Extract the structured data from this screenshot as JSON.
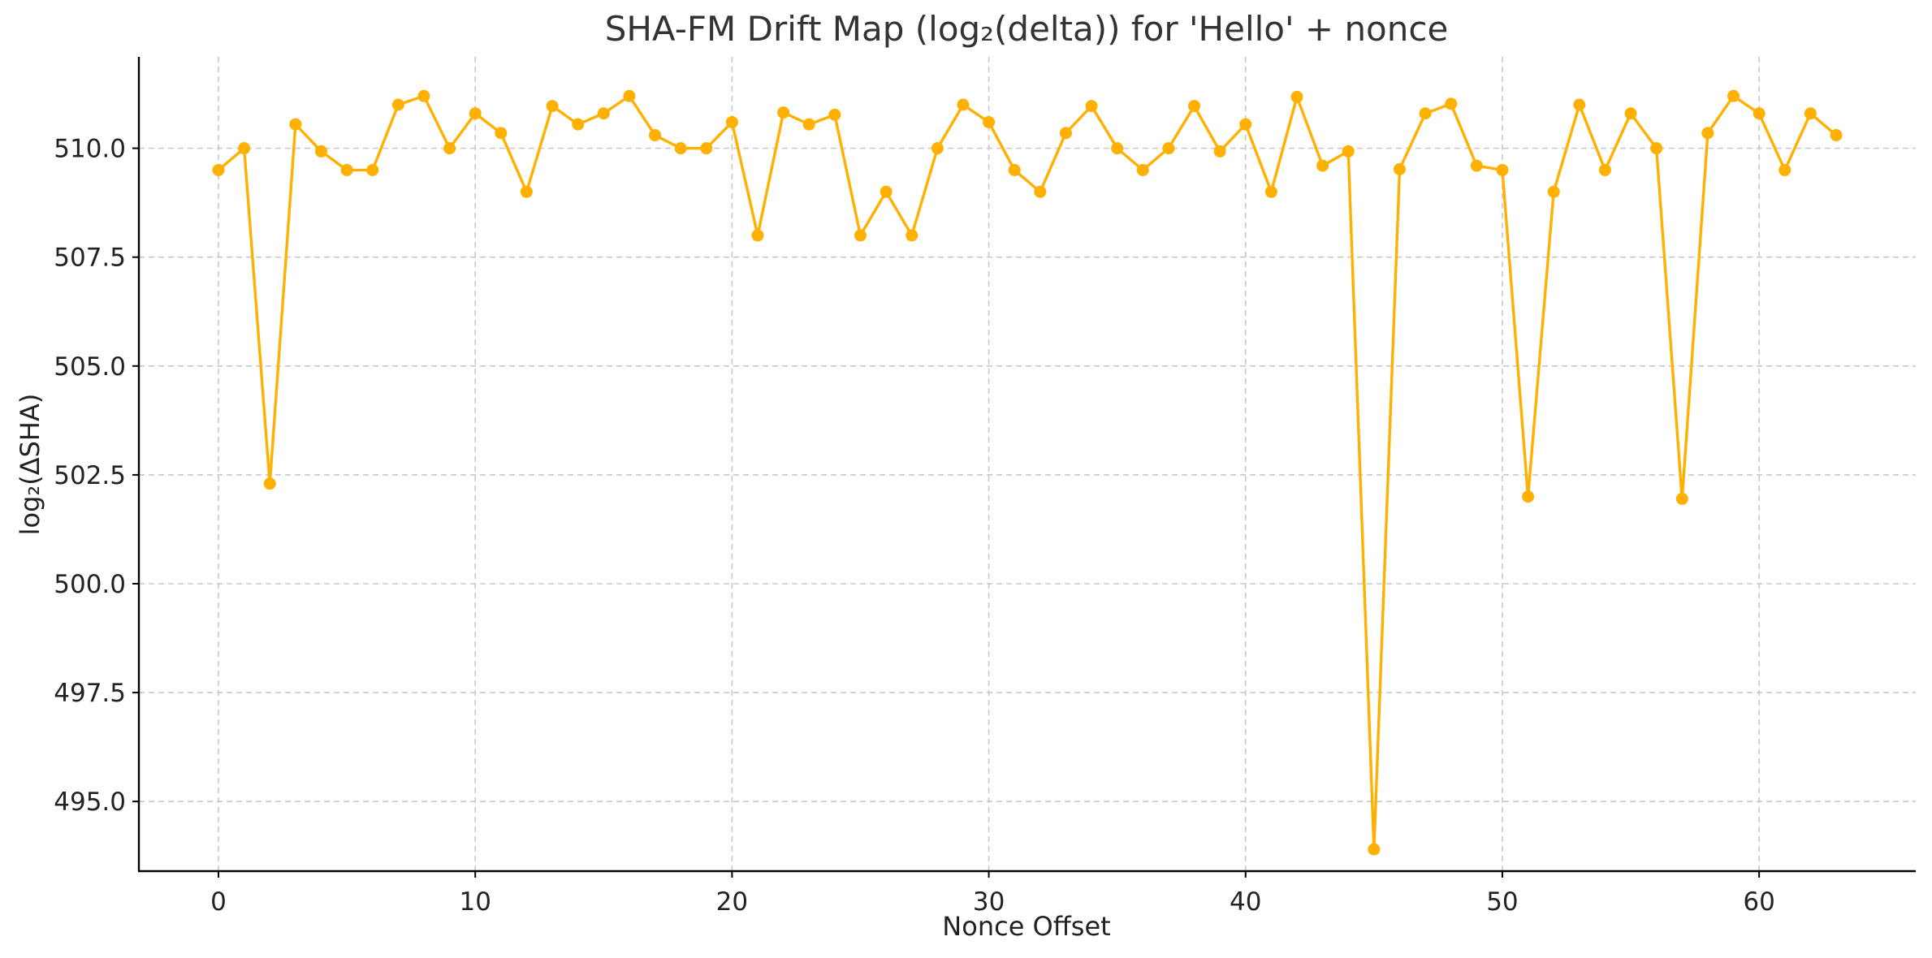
{
  "chart_data": {
    "type": "line",
    "title": "SHA-FM Drift Map (log₂(delta)) for 'Hello' + nonce",
    "xlabel": "Nonce Offset",
    "ylabel": "log₂(ΔSHA)",
    "xlim": [
      -3.1,
      66.1
    ],
    "ylim": [
      493.4,
      512.1
    ],
    "xticks": [
      0,
      10,
      20,
      30,
      40,
      50,
      60
    ],
    "xtick_labels": [
      "0",
      "10",
      "20",
      "30",
      "40",
      "50",
      "60"
    ],
    "yticks": [
      495.0,
      497.5,
      500.0,
      502.5,
      505.0,
      507.5,
      510.0
    ],
    "ytick_labels": [
      "495.0",
      "497.5",
      "500.0",
      "502.5",
      "505.0",
      "507.5",
      "510.0"
    ],
    "grid": true,
    "color": "#FFB000",
    "marker": "circle",
    "series": [
      {
        "x": [
          0,
          1,
          2,
          3,
          4,
          5,
          6,
          7,
          8,
          9,
          10,
          11,
          12,
          13,
          14,
          15,
          16,
          17,
          18,
          19,
          20,
          21,
          22,
          23,
          24,
          25,
          26,
          27,
          28,
          29,
          30,
          31,
          32,
          33,
          34,
          35,
          36,
          37,
          38,
          39,
          40,
          41,
          42,
          43,
          44,
          45,
          46,
          47,
          48,
          49,
          50,
          51,
          52,
          53,
          54,
          55,
          56,
          57,
          58,
          59,
          60,
          61,
          62,
          63
        ],
        "y": [
          509.5,
          510.0,
          502.3,
          510.55,
          509.93,
          509.5,
          509.5,
          511.0,
          511.2,
          510.0,
          510.8,
          510.35,
          509.0,
          510.97,
          510.55,
          510.8,
          511.2,
          510.3,
          510.0,
          510.0,
          510.6,
          508.0,
          510.82,
          510.55,
          510.77,
          508.0,
          509.0,
          508.0,
          510.0,
          511.0,
          510.6,
          509.5,
          509.0,
          510.35,
          510.97,
          510.0,
          509.5,
          510.0,
          510.97,
          509.93,
          510.55,
          509.0,
          511.18,
          509.6,
          509.93,
          493.9,
          509.52,
          510.8,
          511.02,
          509.6,
          509.5,
          502.0,
          509.0,
          511.0,
          509.5,
          510.8,
          510.0,
          501.95,
          510.35,
          511.2,
          510.8,
          509.5,
          510.8,
          510.3
        ]
      }
    ]
  }
}
